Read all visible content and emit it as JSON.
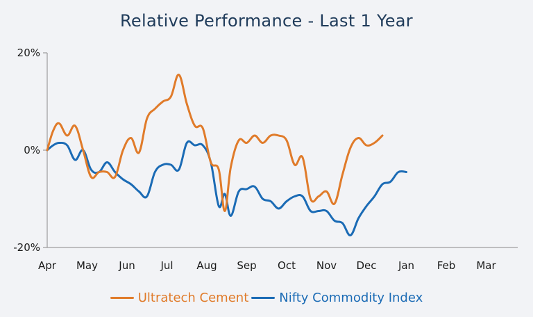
{
  "chart_data": {
    "type": "line",
    "title": "Relative Performance - Last 1 Year",
    "xlabel": "",
    "ylabel": "",
    "categories": [
      "Apr",
      "May",
      "Jun",
      "Jul",
      "Aug",
      "Sep",
      "Oct",
      "Nov",
      "Dec",
      "Jan",
      "Feb",
      "Mar"
    ],
    "yticks": [
      "20%",
      "0%",
      "-20%"
    ],
    "ytick_values": [
      20,
      0,
      -20
    ],
    "ylim": [
      -20,
      20
    ],
    "xlim": [
      0,
      11.85
    ],
    "grid": false,
    "legend_position": "bottom",
    "series": [
      {
        "name": "Ultratech Cement",
        "color": "#e07b2a",
        "x": [
          0,
          0.15,
          0.3,
          0.5,
          0.7,
          0.9,
          1.1,
          1.3,
          1.5,
          1.7,
          1.9,
          2.1,
          2.3,
          2.5,
          2.7,
          2.9,
          3.1,
          3.3,
          3.5,
          3.7,
          3.9,
          4.1,
          4.3,
          4.45,
          4.6,
          4.8,
          5.0,
          5.2,
          5.4,
          5.6,
          5.8,
          6.0,
          6.2,
          6.4,
          6.6,
          6.8,
          7.0,
          7.2,
          7.4,
          7.6,
          7.8,
          8.0,
          8.2,
          8.4,
          8.6,
          8.8,
          9.0,
          9.2,
          9.4,
          9.6,
          9.8,
          10.0,
          10.2,
          10.4,
          10.6,
          10.8,
          11.0,
          11.2,
          11.4,
          11.6
        ],
        "y": [
          0,
          4,
          5.5,
          3,
          5,
          0,
          -5.5,
          -4.5,
          -4.5,
          -5.5,
          0,
          2.5,
          -0.5,
          6.5,
          8.5,
          10,
          11,
          15.5,
          9.5,
          5,
          4.5,
          -2.5,
          -4,
          -12.5,
          -3.5,
          2,
          1.5,
          3,
          1.5,
          3,
          3,
          2,
          -3,
          -1.5,
          -10,
          -9.5,
          -8.5,
          -11,
          -5,
          0.5,
          2.5,
          1,
          1.5,
          3,
          null,
          null,
          null,
          null,
          null,
          null,
          null,
          null,
          null,
          null,
          null,
          null,
          null,
          null,
          null,
          null
        ]
      },
      {
        "name": "Nifty Commodity Index",
        "color": "#1b6bb5",
        "x": [
          0,
          0.15,
          0.3,
          0.5,
          0.7,
          0.9,
          1.1,
          1.3,
          1.5,
          1.7,
          1.9,
          2.1,
          2.3,
          2.5,
          2.7,
          2.9,
          3.1,
          3.3,
          3.5,
          3.7,
          3.9,
          4.1,
          4.3,
          4.45,
          4.6,
          4.8,
          5.0,
          5.2,
          5.4,
          5.6,
          5.8,
          6.0,
          6.2,
          6.4,
          6.6,
          6.8,
          7.0,
          7.2,
          7.4,
          7.6,
          7.8,
          8.0,
          8.2,
          8.4,
          8.6,
          8.8,
          9.0,
          9.2,
          9.4,
          9.6,
          9.8,
          10.0,
          10.2,
          10.4,
          10.6,
          10.8,
          11.0,
          11.2,
          11.4,
          11.6
        ],
        "y": [
          0,
          1,
          1.5,
          1,
          -2,
          0,
          -4,
          -4.5,
          -2.5,
          -4.5,
          -6,
          -7,
          -8.5,
          -9.5,
          -4.5,
          -3,
          -3,
          -4,
          1.5,
          1,
          1,
          -2.5,
          -11.5,
          -9,
          -13.5,
          -8.5,
          -8,
          -7.5,
          -10,
          -10.5,
          -12,
          -10.5,
          -9.5,
          -9.5,
          -12.5,
          -12.5,
          -12.5,
          -14.5,
          -15,
          -17.5,
          -14,
          -11.5,
          -9.5,
          -7,
          -6.5,
          -4.5,
          -4.5,
          null,
          null,
          null,
          null,
          null,
          null,
          null,
          null,
          null,
          null,
          null,
          null,
          null
        ]
      }
    ]
  }
}
